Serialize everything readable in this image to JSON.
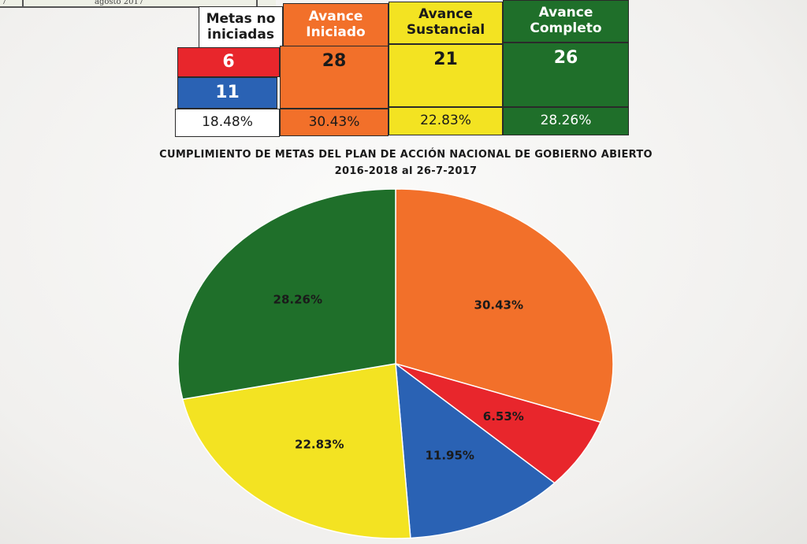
{
  "top_strip": {
    "left_fragment": "7",
    "date_fragment": "agosto 2017"
  },
  "table": {
    "headers": {
      "no_iniciadas": "Metas no iniciadas",
      "iniciado": "Avance Iniciado",
      "sustancial": "Avance Sustancial",
      "completo": "Avance Completo"
    },
    "counts": {
      "no_iniciadas_red": "6",
      "no_iniciadas_blue": "11",
      "iniciado": "28",
      "sustancial": "21",
      "completo": "26"
    },
    "percents": {
      "no_iniciadas": "18.48%",
      "iniciado": "30.43%",
      "sustancial": "22.83%",
      "completo": "28.26%"
    }
  },
  "colors": {
    "red": "#e8262c",
    "blue": "#2a62b4",
    "orange": "#f2702a",
    "yellow": "#f3e322",
    "green": "#1f6f2a",
    "white": "#ffffff"
  },
  "chart_data": {
    "type": "pie",
    "title": "CUMPLIMIENTO DE METAS DEL PLAN DE ACCIÓN NACIONAL DE GOBIERNO ABIERTO",
    "subtitle": "2016-2018 al 26-7-2017",
    "slices": [
      {
        "label": "30.43%",
        "value": 30.43,
        "color": "#f2702a"
      },
      {
        "label": "6.53%",
        "value": 6.53,
        "color": "#e8262c"
      },
      {
        "label": "11.95%",
        "value": 11.95,
        "color": "#2a62b4"
      },
      {
        "label": "22.83%",
        "value": 22.83,
        "color": "#f3e322"
      },
      {
        "label": "28.26%",
        "value": 28.26,
        "color": "#1f6f2a"
      }
    ],
    "start_angle_deg": 0,
    "direction": "clockwise"
  }
}
